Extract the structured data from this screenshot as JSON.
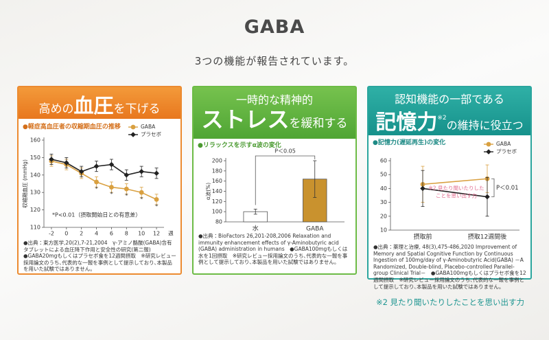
{
  "header": {
    "title": "GABA",
    "subtitle": "3つの機能が報告されています。"
  },
  "chart_data": [
    {
      "type": "line",
      "heading": [
        [
          "高めの",
          "血圧",
          "を下げる"
        ]
      ],
      "subtitle": "●軽症高血圧者の収縮期血圧の推移",
      "ylabel": "収縮期血圧 (mmHg)",
      "xlabel": "週",
      "x": [
        -2,
        0,
        2,
        4,
        6,
        8,
        10,
        12
      ],
      "xlim": [
        -3,
        13
      ],
      "xticks": [
        -2,
        0,
        2,
        4,
        6,
        8,
        10,
        12
      ],
      "ylim": [
        110,
        160
      ],
      "yticks": [
        110,
        120,
        130,
        140,
        150,
        160
      ],
      "legend": "upper right",
      "series": [
        {
          "name": "GABA",
          "color": "#d9a040",
          "marker": "circle",
          "values": [
            148,
            146,
            141,
            136,
            133,
            132,
            130,
            126
          ],
          "errors": [
            3,
            3,
            3,
            3,
            3,
            3,
            3,
            3
          ],
          "significance": [
            null,
            null,
            null,
            "*",
            "*",
            "*",
            "*",
            "*"
          ]
        },
        {
          "name": "プラセボ",
          "color": "#222222",
          "marker": "diamond",
          "values": [
            149,
            147,
            142,
            145,
            146,
            140,
            142,
            141
          ],
          "errors": [
            3,
            3,
            3,
            3,
            3,
            3,
            3,
            3
          ]
        }
      ],
      "note": "*P<0.01（摂取開始日との有意差）",
      "source": "●出典：東方医学,20(2),7-21,2004　γ-アミノ酪酸(GABA)含有タブレットによる血圧降下作用と安全性の研究(第二報)　●GABA20mgもしくはプラセボ食を12週間摂取　※研究レビュー採用論文のうち､代表的な一報を事例として提示しており､本製品を用いた試験ではありません。"
    },
    {
      "type": "bar",
      "heading": [
        [
          "一時的な精神的"
        ],
        [
          "ストレス",
          "を緩和する"
        ]
      ],
      "subtitle": "●リラックスを示すα波の変化",
      "ylabel": "α波(%)",
      "categories": [
        "水",
        "GABA"
      ],
      "values": [
        100,
        164
      ],
      "errors": [
        5,
        36
      ],
      "colors": [
        "#ffffff",
        "#c9922e"
      ],
      "ylim": [
        80,
        200
      ],
      "yticks": [
        80,
        100,
        120,
        140,
        160,
        180,
        200
      ],
      "annotation": "P＜0.05",
      "source": "●出典：BioFactors 26,201-208,2006 Relaxation and immunity enhancement effects of γ-Aminobutyric acid (GABA) administration in humans　●GABA100mgもしくは水を1回摂取　※研究レビュー採用論文のうち､代表的な一報を事例として提示しており､本製品を用いた試験ではありません。"
    },
    {
      "type": "line",
      "heading": [
        [
          "認知機能の一部である"
        ],
        [
          "記憶力",
          "※2",
          "の維持に役立つ"
        ]
      ],
      "subtitle": "●記憶力(遅延再生)の変化",
      "categories": [
        "摂取前",
        "摂取12週間後"
      ],
      "ylim": [
        10,
        60
      ],
      "yticks": [
        10,
        20,
        30,
        40,
        50,
        60
      ],
      "legend": "upper right",
      "series": [
        {
          "name": "GABA",
          "color": "#d9a040",
          "marker": "circle",
          "values": [
            43,
            47
          ],
          "errors": [
            13,
            10
          ]
        },
        {
          "name": "プラセボ",
          "color": "#222222",
          "marker": "diamond",
          "values": [
            40,
            34
          ],
          "errors": [
            13,
            14
          ]
        }
      ],
      "annotation": "P＜0.01",
      "note_lines": [
        "※2 見たり聞いたりした",
        "ことを思い出す力"
      ],
      "source": "●出典：薬理と治療, 48(3),475-486,2020 Improvement of Memory and Spatial Cognitive Function by Continuous Ingestion of 100mg/day of γ-Aminobutyric Acid(GABA) －A Randomized, Double-blind, Placebo-controlled Parallel-group Clinical Trial－　●GABA100mgもしくはプラセボ食を12週間摂取　※研究レビュー採用論文のうち､代表的な一報を事例として提示しており､本製品を用いた試験ではありません。"
    }
  ],
  "footnote": "※2 見たり聞いたりしたことを思い出す力"
}
